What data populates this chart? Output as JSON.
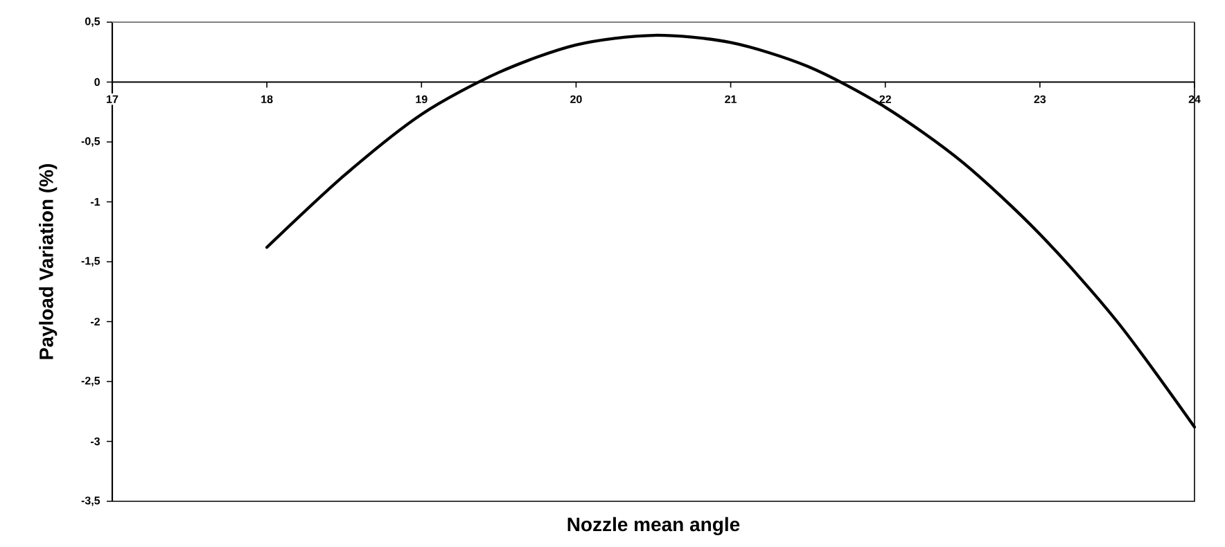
{
  "chart_data": {
    "type": "line",
    "xlabel": "Nozzle mean angle",
    "ylabel": "Payload Variation (%)",
    "x": [
      18,
      18.5,
      19,
      19.5,
      20,
      20.5,
      21,
      21.5,
      22,
      22.5,
      23,
      23.5,
      24
    ],
    "series": [
      {
        "color": "#000000",
        "line_style": "solid",
        "values": [
          -1.38,
          -0.78,
          -0.27,
          0.08,
          0.31,
          0.39,
          0.33,
          0.13,
          -0.21,
          -0.67,
          -1.27,
          -2.0,
          -2.88
        ]
      }
    ],
    "xlim": [
      17,
      24
    ],
    "ylim": [
      -3.5,
      0.5
    ],
    "xticks": [
      17,
      18,
      19,
      20,
      21,
      22,
      23,
      24
    ],
    "yticks": [
      {
        "value": 0.5,
        "label": "0,5"
      },
      0,
      {
        "value": -0.5,
        "label": "-0,5"
      },
      -1,
      {
        "value": -1.5,
        "label": "-1,5"
      },
      -2,
      {
        "value": -2.5,
        "label": "-2,5"
      },
      -3,
      {
        "value": -3.5,
        "label": "-3,5"
      }
    ],
    "grid": false
  }
}
